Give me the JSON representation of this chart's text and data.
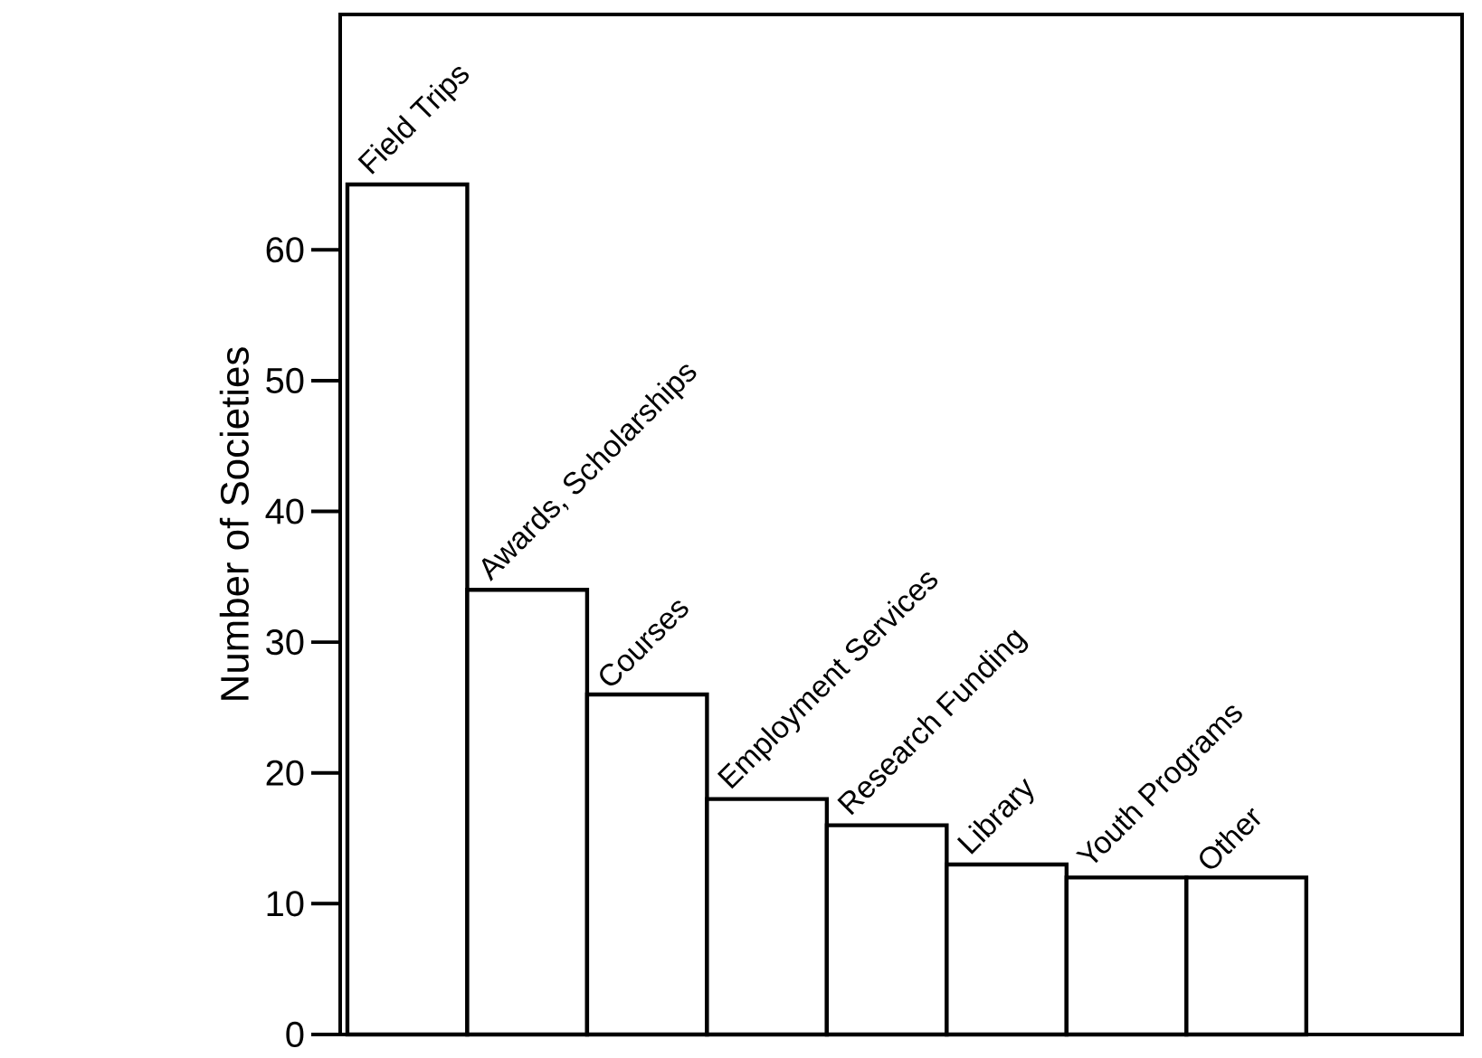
{
  "chart_data": {
    "type": "bar",
    "ylabel": "Number of Societies",
    "categories": [
      null,
      null,
      null,
      null,
      null,
      null,
      null,
      null
    ],
    "values": [
      65,
      34,
      26,
      18,
      16,
      13,
      12,
      12
    ],
    "color": "#ffffff",
    "ylim": [
      0,
      78
    ],
    "yticks": [
      0,
      10,
      20,
      30,
      40,
      50,
      60
    ],
    "annotations": [
      {
        "text": "Field Trips",
        "y": 65
      },
      {
        "text": "Awards, Scholarships",
        "y": 34
      },
      {
        "text": "Courses",
        "y": 26
      },
      {
        "text": "Employment Services",
        "y": 18
      },
      {
        "text": "Research Funding",
        "y": 16
      },
      {
        "text": "Library",
        "y": 13
      },
      {
        "text": "Youth Programs",
        "y": 12
      },
      {
        "text": "Other",
        "y": 12
      }
    ],
    "grid": false
  }
}
